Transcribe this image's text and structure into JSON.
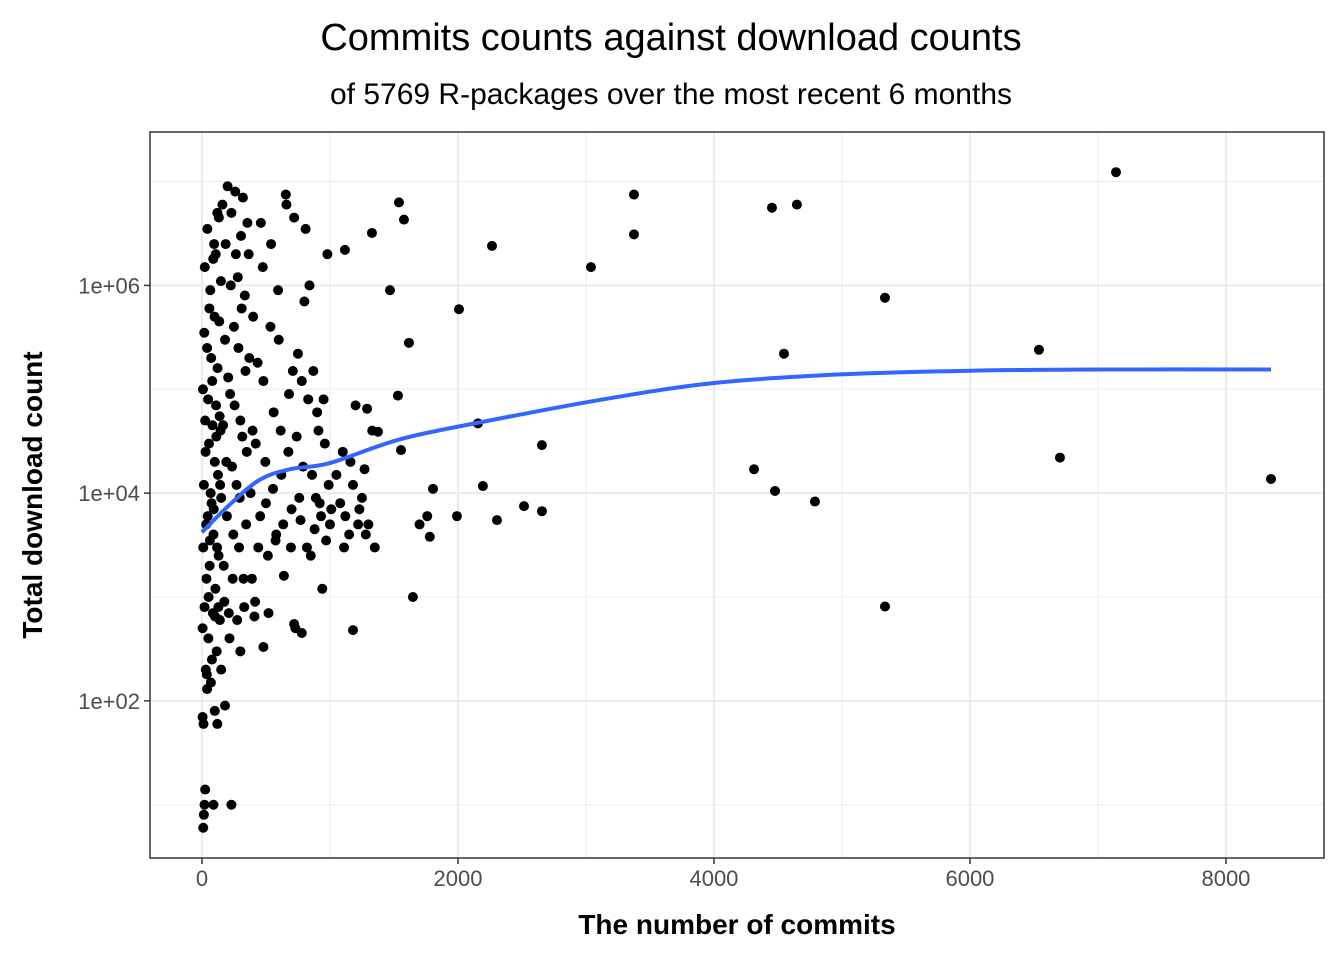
{
  "chart_data": {
    "type": "scatter",
    "title": "Commits counts against download counts",
    "subtitle": "of 5769 R-packages over the most recent 6 months",
    "xlabel": "The number of commits",
    "ylabel": "Total download count",
    "xlim": [
      -406,
      8766
    ],
    "ylim": [
      3.07,
      30000000
    ],
    "y_scale": "log10",
    "grid": true,
    "x_ticks": [
      0,
      2000,
      4000,
      6000,
      8000
    ],
    "x_tick_labels": [
      "0",
      "2000",
      "4000",
      "6000",
      "8000"
    ],
    "y_ticks": [
      100,
      10000,
      1000000
    ],
    "y_tick_labels": [
      "1e+02",
      "1e+04",
      "1e+06"
    ],
    "point_color": "#000000",
    "smooth_color": "#3366FF",
    "points": [
      [
        10,
        3000
      ],
      [
        15,
        12000
      ],
      [
        20,
        800
      ],
      [
        25,
        50000
      ],
      [
        30,
        200
      ],
      [
        35,
        1500
      ],
      [
        40,
        250000
      ],
      [
        45,
        6000
      ],
      [
        50,
        400
      ],
      [
        55,
        30000
      ],
      [
        60,
        2000
      ],
      [
        65,
        900000
      ],
      [
        70,
        150
      ],
      [
        75,
        8000
      ],
      [
        80,
        120000
      ],
      [
        85,
        700
      ],
      [
        90,
        4000
      ],
      [
        95,
        2500000
      ],
      [
        100,
        20000
      ],
      [
        105,
        1200
      ],
      [
        110,
        70000
      ],
      [
        115,
        300
      ],
      [
        120,
        5000000
      ],
      [
        125,
        15000
      ],
      [
        130,
        2500
      ],
      [
        135,
        450000
      ],
      [
        140,
        600
      ],
      [
        145,
        40000
      ],
      [
        150,
        9000
      ],
      [
        5,
        500
      ],
      [
        8,
        100000
      ],
      [
        12,
        60
      ],
      [
        18,
        350000
      ],
      [
        22,
        1500000
      ],
      [
        28,
        25000
      ],
      [
        33,
        5000
      ],
      [
        38,
        180
      ],
      [
        42,
        3500000
      ],
      [
        48,
        80000
      ],
      [
        52,
        1000
      ],
      [
        58,
        600000
      ],
      [
        62,
        3500
      ],
      [
        68,
        10000
      ],
      [
        72,
        200000
      ],
      [
        78,
        250
      ],
      [
        82,
        45000
      ],
      [
        88,
        1800000
      ],
      [
        92,
        7000
      ],
      [
        98,
        500000
      ],
      [
        102,
        650
      ],
      [
        108,
        2000000
      ],
      [
        112,
        35000
      ],
      [
        118,
        3000
      ],
      [
        122,
        160000
      ],
      [
        128,
        800
      ],
      [
        132,
        4500000
      ],
      [
        138,
        55000
      ],
      [
        142,
        12000
      ],
      [
        148,
        1100000
      ],
      [
        160,
        6000000
      ],
      [
        170,
        2000
      ],
      [
        180,
        300000
      ],
      [
        190,
        20000
      ],
      [
        200,
        9000000
      ],
      [
        210,
        700
      ],
      [
        220,
        90000
      ],
      [
        230,
        5000000
      ],
      [
        240,
        1500
      ],
      [
        250,
        400000
      ],
      [
        260,
        8000000
      ],
      [
        270,
        12000
      ],
      [
        280,
        1200000
      ],
      [
        290,
        3000
      ],
      [
        300,
        50000
      ],
      [
        310,
        600000
      ],
      [
        320,
        7000000
      ],
      [
        330,
        800
      ],
      [
        340,
        150000
      ],
      [
        350,
        25000
      ],
      [
        165,
        45000
      ],
      [
        175,
        900
      ],
      [
        185,
        2500000
      ],
      [
        195,
        6000
      ],
      [
        205,
        130000
      ],
      [
        215,
        400
      ],
      [
        225,
        1000000
      ],
      [
        235,
        18000
      ],
      [
        245,
        4000
      ],
      [
        255,
        70000
      ],
      [
        265,
        2000000
      ],
      [
        275,
        600
      ],
      [
        285,
        250000
      ],
      [
        295,
        9000
      ],
      [
        305,
        3000000
      ],
      [
        315,
        35000
      ],
      [
        325,
        1500
      ],
      [
        335,
        800000
      ],
      [
        345,
        5000
      ],
      [
        355,
        4000000
      ],
      [
        370,
        200000
      ],
      [
        380,
        10000
      ],
      [
        390,
        1500
      ],
      [
        400,
        500000
      ],
      [
        420,
        30000
      ],
      [
        440,
        3000
      ],
      [
        460,
        4000000
      ],
      [
        480,
        120000
      ],
      [
        500,
        8000
      ],
      [
        520,
        700
      ],
      [
        540,
        2500000
      ],
      [
        560,
        60000
      ],
      [
        580,
        4000
      ],
      [
        600,
        300000
      ],
      [
        620,
        15000
      ],
      [
        640,
        1600
      ],
      [
        660,
        6000000
      ],
      [
        680,
        90000
      ],
      [
        700,
        7000
      ],
      [
        365,
        2000000
      ],
      [
        395,
        40000
      ],
      [
        415,
        900
      ],
      [
        435,
        180000
      ],
      [
        455,
        6000
      ],
      [
        475,
        1500000
      ],
      [
        495,
        20000
      ],
      [
        515,
        2500
      ],
      [
        535,
        400000
      ],
      [
        555,
        11000
      ],
      [
        575,
        3500
      ],
      [
        595,
        900000
      ],
      [
        615,
        40000
      ],
      [
        635,
        5000
      ],
      [
        655,
        7500000
      ],
      [
        675,
        25000
      ],
      [
        695,
        3000
      ],
      [
        710,
        150000
      ],
      [
        720,
        4500000
      ],
      [
        740,
        35000
      ],
      [
        760,
        9000
      ],
      [
        780,
        120000
      ],
      [
        800,
        700000
      ],
      [
        820,
        3000
      ],
      [
        840,
        1000000
      ],
      [
        860,
        15000
      ],
      [
        880,
        4500
      ],
      [
        900,
        60000
      ],
      [
        920,
        8000
      ],
      [
        940,
        1200
      ],
      [
        960,
        30000
      ],
      [
        980,
        2000000
      ],
      [
        1000,
        5000
      ],
      [
        730,
        500
      ],
      [
        750,
        220000
      ],
      [
        770,
        5500
      ],
      [
        790,
        18000
      ],
      [
        810,
        3500000
      ],
      [
        830,
        80000
      ],
      [
        850,
        2500
      ],
      [
        870,
        150000
      ],
      [
        890,
        9000
      ],
      [
        910,
        40000
      ],
      [
        930,
        6000
      ],
      [
        950,
        80000
      ],
      [
        970,
        3500
      ],
      [
        990,
        12000
      ],
      [
        1010,
        7000
      ],
      [
        1050,
        15000
      ],
      [
        1080,
        8000
      ],
      [
        1100,
        25000
      ],
      [
        1120,
        6000
      ],
      [
        1150,
        4000
      ],
      [
        1180,
        12000
      ],
      [
        1200,
        70000
      ],
      [
        1220,
        5000
      ],
      [
        1250,
        9000
      ],
      [
        1270,
        17000
      ],
      [
        1290,
        65000
      ],
      [
        1300,
        5000
      ],
      [
        1330,
        40000
      ],
      [
        1350,
        3000
      ],
      [
        1280,
        4000
      ],
      [
        1160,
        20000
      ],
      [
        1230,
        7000
      ],
      [
        1110,
        3000
      ],
      [
        7141,
        12300000
      ],
      [
        3375,
        7500000
      ],
      [
        3375,
        3100000
      ],
      [
        4453,
        5600000
      ],
      [
        4648,
        6000000
      ],
      [
        3039,
        1500000
      ],
      [
        2266,
        2400000
      ],
      [
        2008,
        590000
      ],
      [
        1469,
        900000
      ],
      [
        5336,
        760000
      ],
      [
        4547,
        220000
      ],
      [
        6539,
        240000
      ],
      [
        1617,
        280000
      ],
      [
        1531,
        87000
      ],
      [
        2156,
        47000
      ],
      [
        2656,
        29000
      ],
      [
        4313,
        17000
      ],
      [
        6703,
        22000
      ],
      [
        8352,
        13700
      ],
      [
        4477,
        10500
      ],
      [
        4789,
        8300
      ],
      [
        2195,
        11700
      ],
      [
        2516,
        7500
      ],
      [
        2656,
        6700
      ],
      [
        2305,
        5500
      ],
      [
        1992,
        6000
      ],
      [
        1805,
        11000
      ],
      [
        1555,
        26000
      ],
      [
        1375,
        39000
      ],
      [
        5336,
        810
      ],
      [
        1648,
        1000
      ],
      [
        1180,
        480
      ],
      [
        1328,
        3200000
      ],
      [
        1539,
        6300000
      ],
      [
        1578,
        4300000
      ],
      [
        1117,
        2200000
      ],
      [
        1700,
        5000
      ],
      [
        1780,
        3800
      ],
      [
        1760,
        6000
      ],
      [
        10,
        6
      ],
      [
        15,
        8
      ],
      [
        20,
        10
      ],
      [
        25,
        14
      ],
      [
        90,
        10
      ],
      [
        230,
        10
      ],
      [
        5,
        70
      ],
      [
        100,
        80
      ],
      [
        120,
        60
      ],
      [
        180,
        90
      ],
      [
        150,
        200
      ],
      [
        40,
        130
      ],
      [
        300,
        300
      ],
      [
        480,
        330
      ],
      [
        720,
        550
      ],
      [
        780,
        450
      ],
      [
        410,
        650
      ]
    ],
    "smooth": [
      [
        0,
        4200
      ],
      [
        219,
        7800
      ],
      [
        453,
        13500
      ],
      [
        688,
        17000
      ],
      [
        1000,
        19500
      ],
      [
        1547,
        33000
      ],
      [
        2172,
        48000
      ],
      [
        3109,
        79000
      ],
      [
        4000,
        115000
      ],
      [
        4984,
        139000
      ],
      [
        6000,
        151000
      ],
      [
        7016,
        155000
      ],
      [
        8352,
        155000
      ]
    ]
  }
}
